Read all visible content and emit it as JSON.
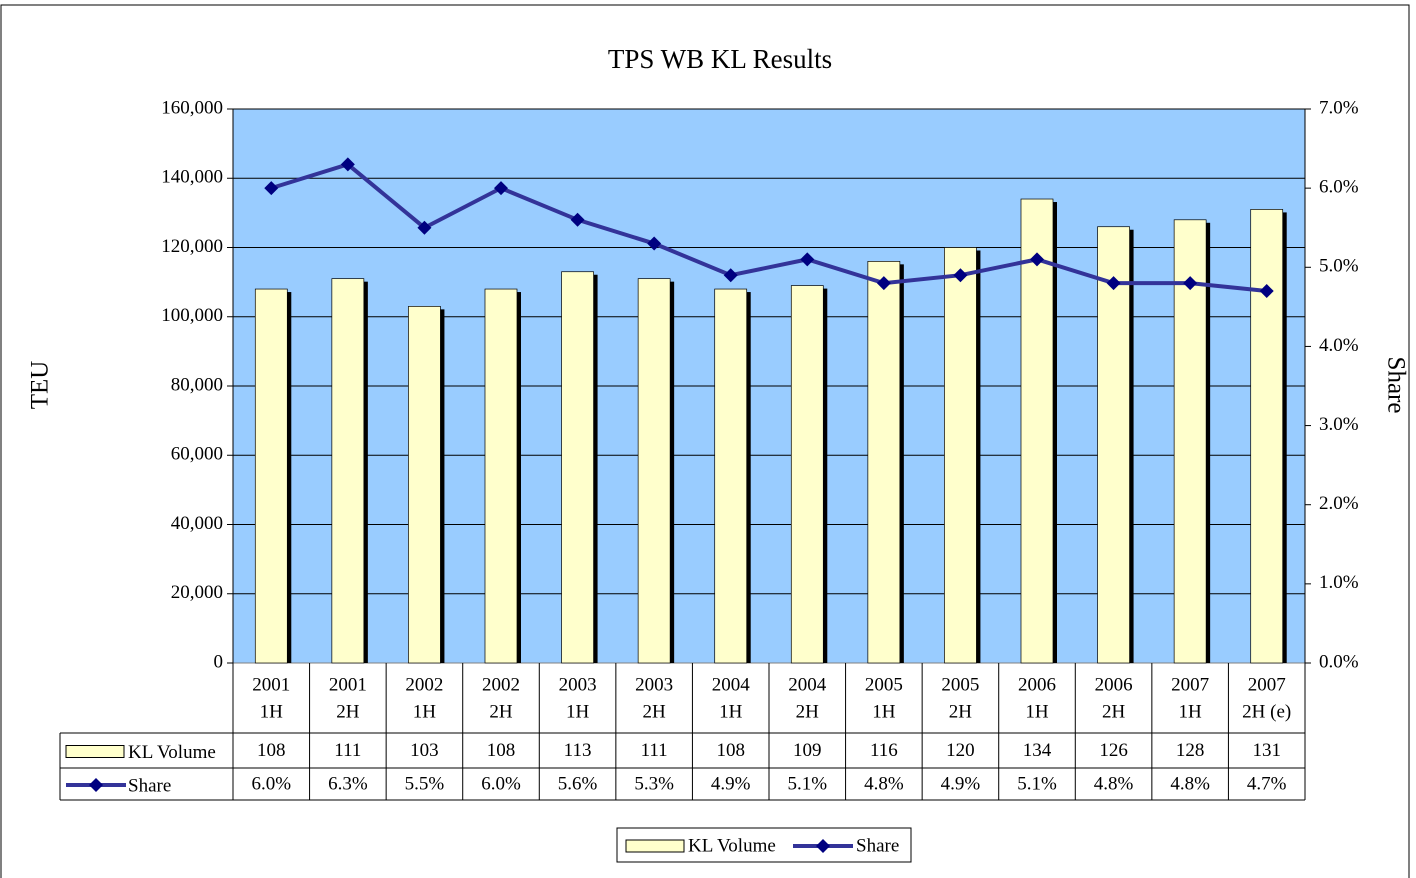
{
  "chart_data": {
    "type": "bar",
    "title": "TPS WB KL Results",
    "y_label": "TEU",
    "y2_label": "Share",
    "categories": [
      [
        "2001",
        "1H"
      ],
      [
        "2001",
        "2H"
      ],
      [
        "2002",
        "1H"
      ],
      [
        "2002",
        "2H"
      ],
      [
        "2003",
        "1H"
      ],
      [
        "2003",
        "2H"
      ],
      [
        "2004",
        "1H"
      ],
      [
        "2004",
        "2H"
      ],
      [
        "2005",
        "1H"
      ],
      [
        "2005",
        "2H"
      ],
      [
        "2006",
        "1H"
      ],
      [
        "2006",
        "2H"
      ],
      [
        "2007",
        "1H"
      ],
      [
        "2007",
        "2H (e)"
      ]
    ],
    "series": [
      {
        "name": "KL Volume",
        "color": "#ffffcc",
        "values": [
          108000,
          111000,
          103000,
          108000,
          113000,
          111000,
          108000,
          109000,
          116000,
          120000,
          134000,
          126000,
          128000,
          131000
        ],
        "value_labels": [
          "108",
          "111",
          "103",
          "108",
          "113",
          "111",
          "108",
          "109",
          "116",
          "120",
          "134",
          "126",
          "128",
          "131"
        ]
      },
      {
        "name": "Share",
        "type": "line",
        "axis": "y2",
        "color": "#333399",
        "marker_color": "#000080",
        "values": [
          6.0,
          6.3,
          5.5,
          6.0,
          5.6,
          5.3,
          4.9,
          5.1,
          4.8,
          4.9,
          5.1,
          4.8,
          4.8,
          4.7
        ],
        "value_labels": [
          "6.0%",
          "6.3%",
          "5.5%",
          "6.0%",
          "5.6%",
          "5.3%",
          "4.9%",
          "5.1%",
          "4.8%",
          "4.9%",
          "5.1%",
          "4.8%",
          "4.8%",
          "4.7%"
        ]
      }
    ],
    "ylim": [
      0,
      160000
    ],
    "yticks": [
      0,
      {
        "value": 20000,
        "label": "20,000"
      },
      {
        "value": 40000,
        "label": "40,000"
      },
      {
        "value": 60000,
        "label": "60,000"
      },
      {
        "value": 80000,
        "label": "80,000"
      },
      {
        "value": 100000,
        "label": "100,000"
      },
      {
        "value": 120000,
        "label": "120,000"
      },
      {
        "value": 140000,
        "label": "140,000"
      },
      {
        "value": 160000,
        "label": "160,000"
      }
    ],
    "y2lim": [
      0,
      7
    ],
    "y2ticks": [
      {
        "value": 0,
        "label": "0.0%"
      },
      {
        "value": 1,
        "label": "1.0%"
      },
      {
        "value": 2,
        "label": "2.0%"
      },
      {
        "value": 3,
        "label": "3.0%"
      },
      {
        "value": 4,
        "label": "4.0%"
      },
      {
        "value": 5,
        "label": "5.0%"
      },
      {
        "value": 6,
        "label": "6.0%"
      },
      {
        "value": 7,
        "label": "7.0%"
      }
    ],
    "grid": true,
    "plot_background": "#99ccff",
    "legend": "bottom"
  }
}
